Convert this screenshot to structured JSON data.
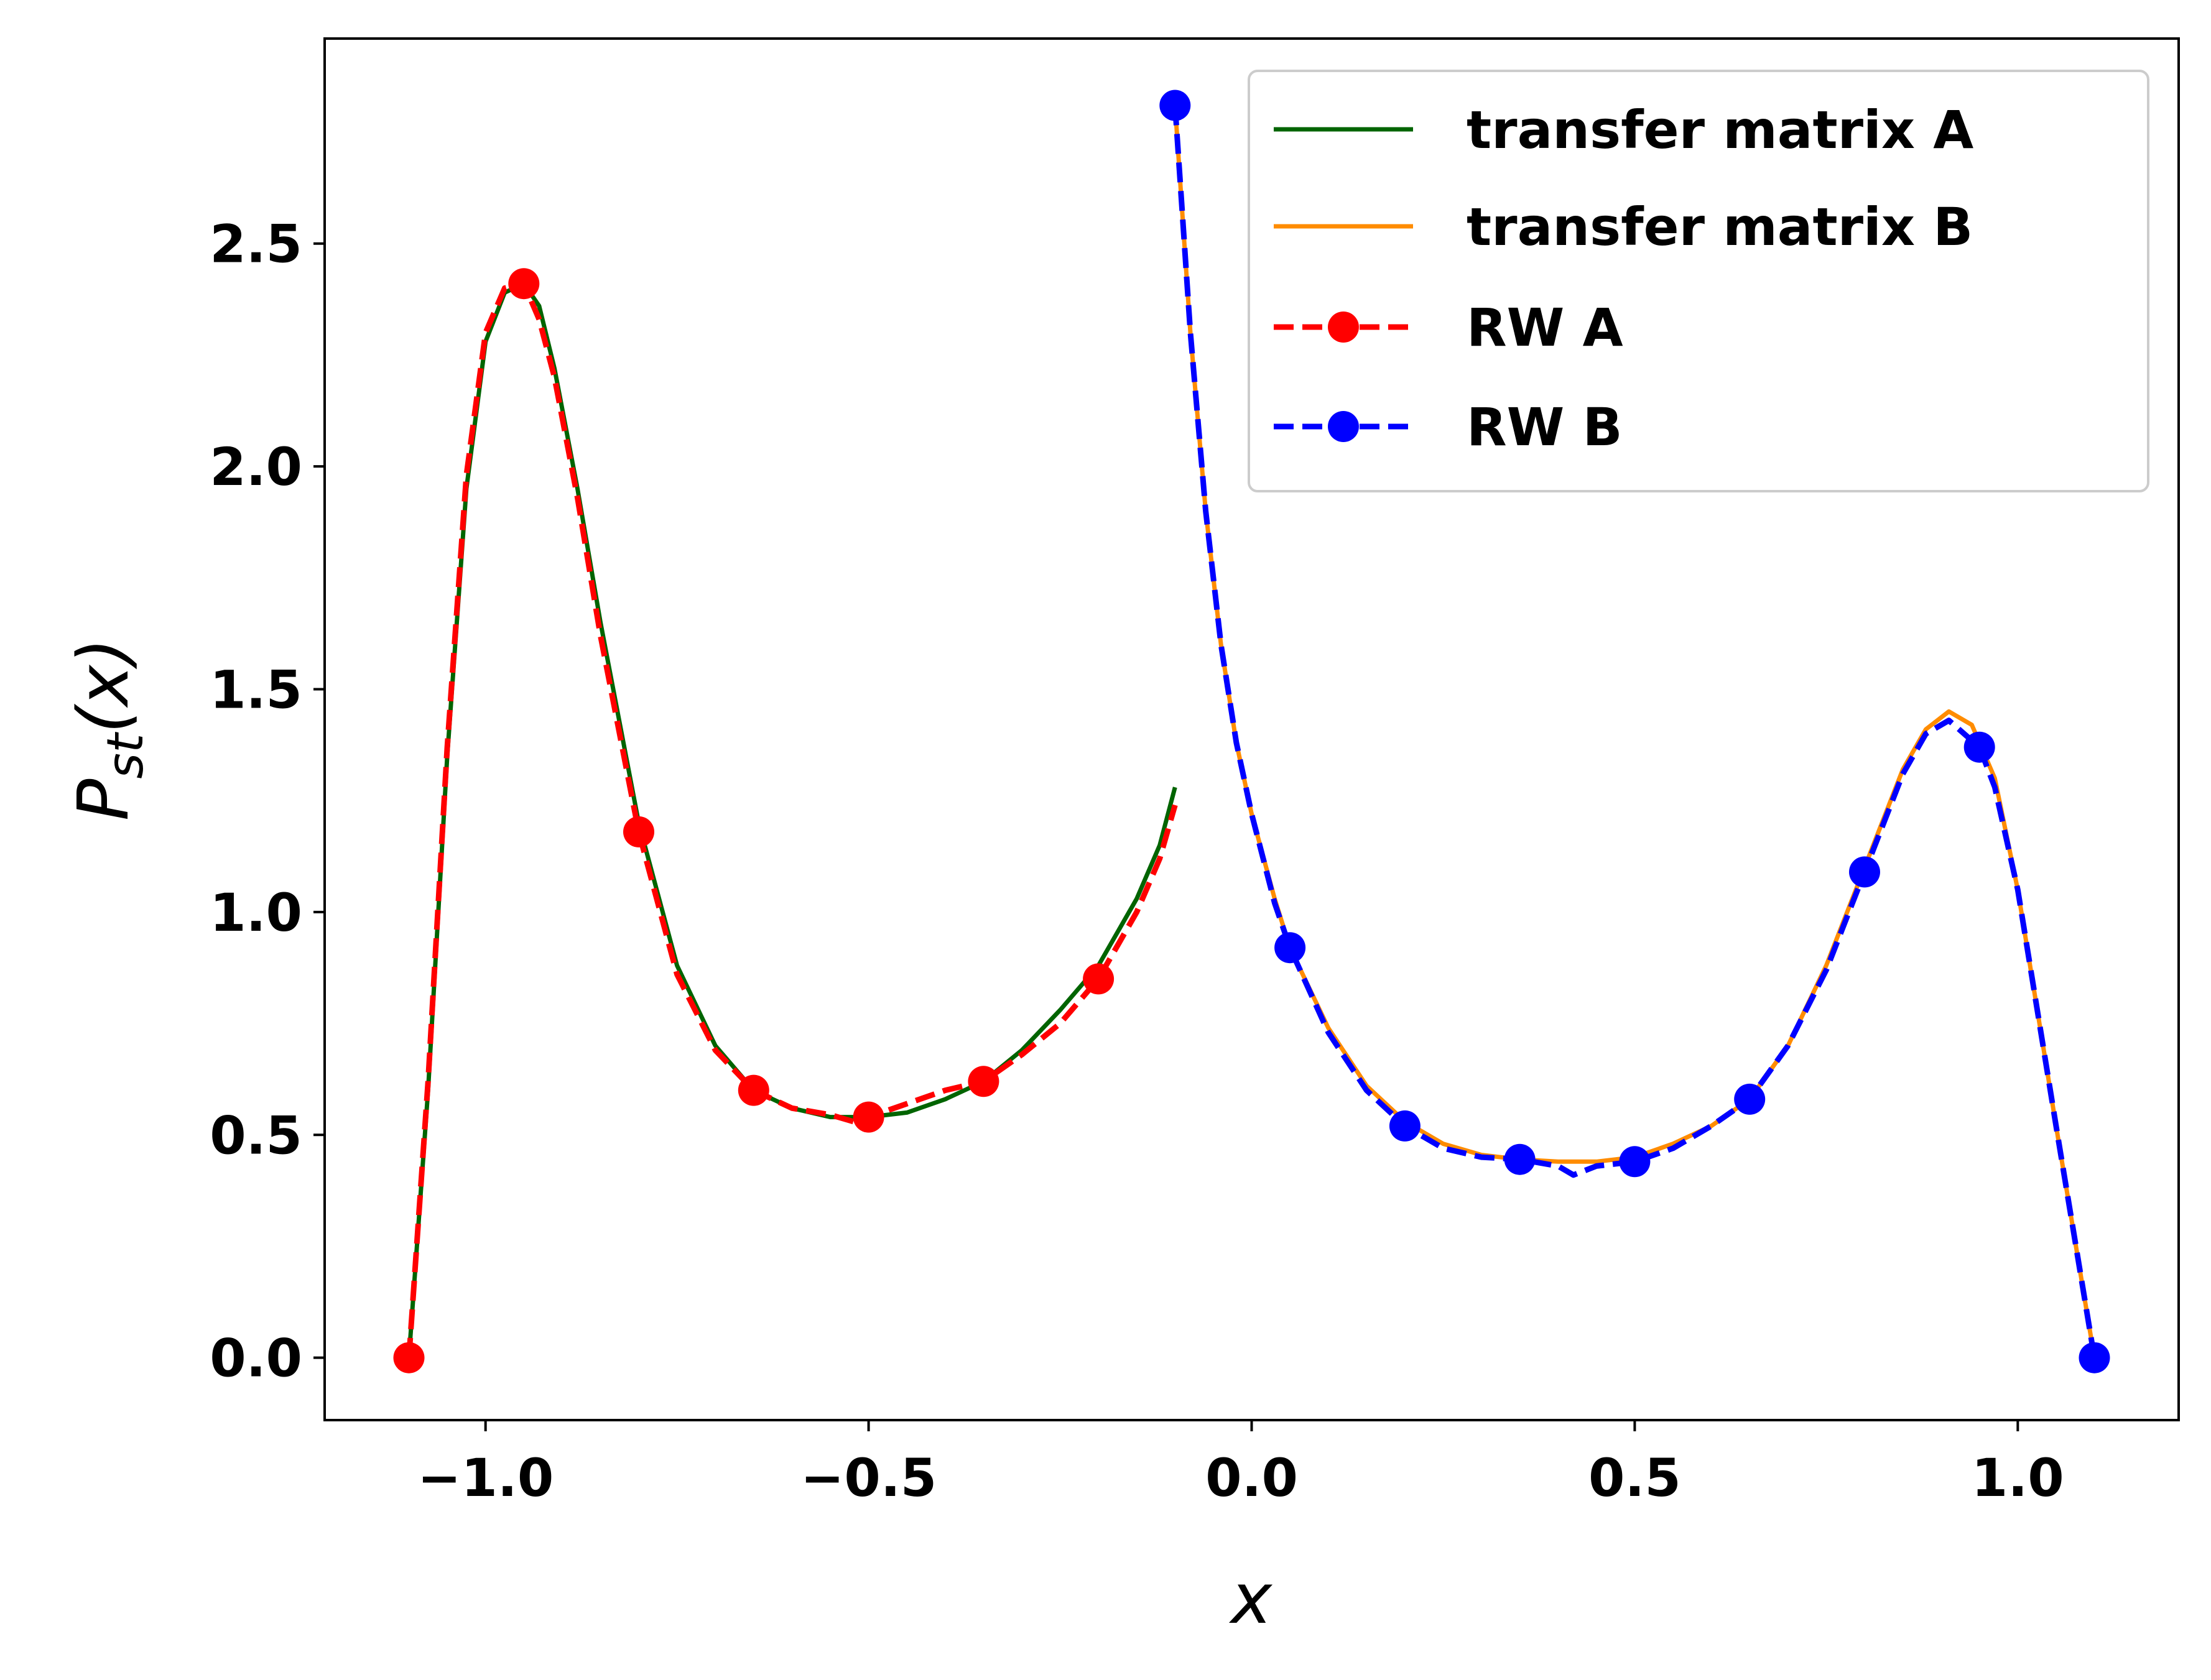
{
  "chart_data": {
    "type": "line",
    "xlabel": "x",
    "ylabel": "P_st(x)",
    "xlim": [
      -1.21,
      1.21
    ],
    "ylim": [
      -0.14,
      2.96
    ],
    "x_ticks": [
      -1.0,
      -0.5,
      0.0,
      0.5,
      1.0
    ],
    "x_tick_labels": [
      "−1.0",
      "−0.5",
      "0.0",
      "0.5",
      "1.0"
    ],
    "y_ticks": [
      0.0,
      0.5,
      1.0,
      1.5,
      2.0,
      2.5
    ],
    "y_tick_labels": [
      "0.0",
      "0.5",
      "1.0",
      "1.5",
      "2.0",
      "2.5"
    ],
    "grid": false,
    "legend_position": "top-right",
    "series": [
      {
        "name": "transfer matrix A",
        "style": "solid",
        "color": "#006400",
        "x": [
          -1.1,
          -1.075,
          -1.05,
          -1.025,
          -1.0,
          -0.975,
          -0.95,
          -0.93,
          -0.91,
          -0.88,
          -0.85,
          -0.8,
          -0.75,
          -0.7,
          -0.65,
          -0.6,
          -0.55,
          -0.5,
          -0.45,
          -0.4,
          -0.35,
          -0.3,
          -0.25,
          -0.2,
          -0.15,
          -0.12,
          -0.1
        ],
        "y": [
          0.0,
          0.6,
          1.35,
          1.95,
          2.28,
          2.39,
          2.41,
          2.36,
          2.22,
          1.95,
          1.65,
          1.2,
          0.88,
          0.7,
          0.6,
          0.56,
          0.54,
          0.54,
          0.55,
          0.58,
          0.62,
          0.69,
          0.78,
          0.88,
          1.03,
          1.15,
          1.28
        ]
      },
      {
        "name": "transfer matrix B",
        "style": "solid",
        "color": "#ff8c00",
        "x": [
          -0.1,
          -0.08,
          -0.06,
          -0.04,
          -0.02,
          0.0,
          0.03,
          0.05,
          0.1,
          0.15,
          0.2,
          0.25,
          0.3,
          0.35,
          0.4,
          0.45,
          0.5,
          0.55,
          0.6,
          0.65,
          0.7,
          0.75,
          0.8,
          0.85,
          0.88,
          0.91,
          0.94,
          0.97,
          1.0,
          1.05,
          1.1
        ],
        "y": [
          2.81,
          2.3,
          1.9,
          1.6,
          1.38,
          1.22,
          1.03,
          0.92,
          0.74,
          0.61,
          0.53,
          0.48,
          0.455,
          0.445,
          0.44,
          0.44,
          0.45,
          0.48,
          0.52,
          0.58,
          0.7,
          0.88,
          1.1,
          1.32,
          1.41,
          1.45,
          1.42,
          1.3,
          1.05,
          0.52,
          0.0
        ]
      },
      {
        "name": "RW A",
        "style": "dashed",
        "color": "#ff0000",
        "marker_x": [
          -1.1,
          -0.95,
          -0.8,
          -0.65,
          -0.5,
          -0.35,
          -0.2
        ],
        "marker_y": [
          0.0,
          2.41,
          1.18,
          0.6,
          0.54,
          0.62,
          0.85
        ],
        "x": [
          -1.1,
          -1.075,
          -1.05,
          -1.025,
          -1.0,
          -0.975,
          -0.95,
          -0.93,
          -0.91,
          -0.88,
          -0.85,
          -0.8,
          -0.75,
          -0.7,
          -0.65,
          -0.6,
          -0.55,
          -0.52,
          -0.5,
          -0.45,
          -0.4,
          -0.35,
          -0.3,
          -0.25,
          -0.2,
          -0.15,
          -0.12,
          -0.1
        ],
        "y": [
          0.0,
          0.62,
          1.37,
          1.98,
          2.3,
          2.4,
          2.41,
          2.33,
          2.2,
          1.93,
          1.62,
          1.18,
          0.86,
          0.69,
          0.6,
          0.56,
          0.545,
          0.53,
          0.54,
          0.57,
          0.6,
          0.62,
          0.68,
          0.75,
          0.85,
          1.0,
          1.12,
          1.24
        ]
      },
      {
        "name": "RW B",
        "style": "dashed",
        "color": "#0000ff",
        "marker_x": [
          -0.1,
          0.05,
          0.2,
          0.35,
          0.5,
          0.65,
          0.8,
          0.95,
          1.1
        ],
        "marker_y": [
          2.81,
          0.92,
          0.52,
          0.445,
          0.44,
          0.58,
          1.09,
          1.37,
          0.0
        ],
        "x": [
          -0.1,
          -0.08,
          -0.06,
          -0.04,
          -0.02,
          0.0,
          0.03,
          0.05,
          0.1,
          0.15,
          0.2,
          0.25,
          0.3,
          0.35,
          0.4,
          0.42,
          0.45,
          0.5,
          0.55,
          0.6,
          0.65,
          0.7,
          0.75,
          0.8,
          0.85,
          0.88,
          0.91,
          0.95,
          0.97,
          1.0,
          1.05,
          1.1
        ],
        "y": [
          2.81,
          2.3,
          1.9,
          1.6,
          1.38,
          1.22,
          1.02,
          0.92,
          0.73,
          0.6,
          0.52,
          0.47,
          0.45,
          0.445,
          0.43,
          0.41,
          0.43,
          0.44,
          0.47,
          0.52,
          0.58,
          0.7,
          0.87,
          1.09,
          1.31,
          1.4,
          1.43,
          1.37,
          1.28,
          1.05,
          0.52,
          0.0
        ]
      }
    ]
  }
}
